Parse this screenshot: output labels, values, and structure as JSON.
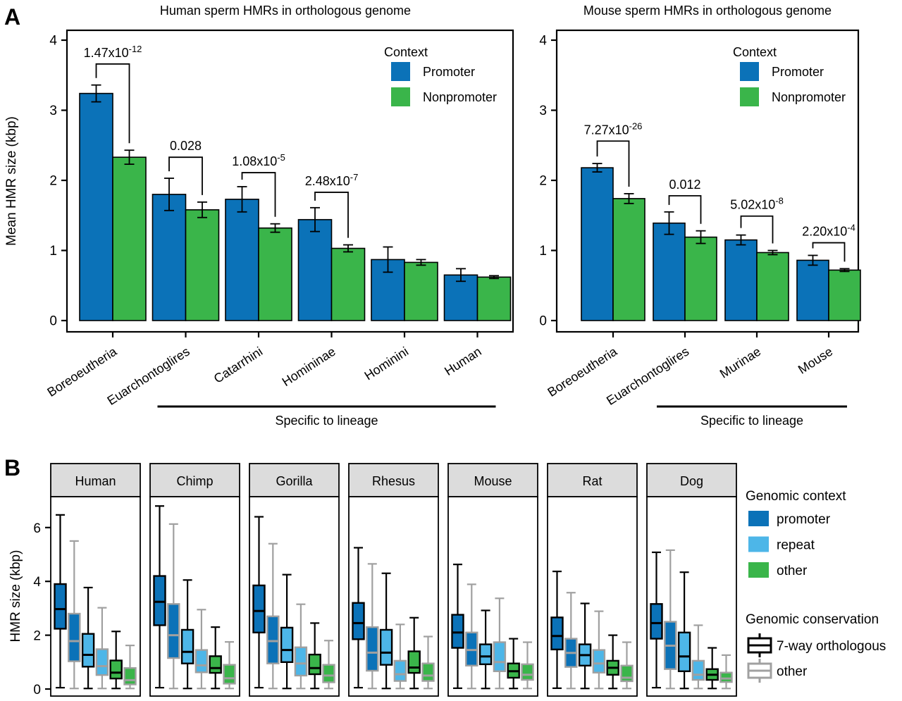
{
  "figure": {
    "panel_a_label": "A",
    "panel_b_label": "B"
  },
  "colors": {
    "promoter_blue": "#0b72b8",
    "nonpromoter_green": "#3ab54a",
    "repeat_lightblue": "#4db6e8",
    "conservation_other_gray": "#a0a0a0",
    "axis_black": "#000000",
    "strip_fill": "#dcdcdc"
  },
  "chart_data": [
    {
      "type": "bar",
      "panel": "A",
      "position": "left",
      "title": "Human sperm HMRs in orthologous genome",
      "ylabel": "Mean HMR size (kbp)",
      "ylim": [
        0,
        4
      ],
      "yticks": [
        0,
        1,
        2,
        3,
        4
      ],
      "categories": [
        "Boreoeutheria",
        "Euarchontoglires",
        "Catarrhini",
        "Homininae",
        "Hominini",
        "Human"
      ],
      "series": [
        {
          "name": "Promoter",
          "color_key": "promoter_blue",
          "values": [
            3.24,
            1.8,
            1.73,
            1.44,
            0.87,
            0.65
          ],
          "errors": [
            0.12,
            0.23,
            0.18,
            0.17,
            0.18,
            0.09
          ]
        },
        {
          "name": "Nonpromoter",
          "color_key": "nonpromoter_green",
          "values": [
            2.33,
            1.58,
            1.32,
            1.03,
            0.83,
            0.62
          ],
          "errors": [
            0.1,
            0.11,
            0.06,
            0.05,
            0.04,
            0.02
          ]
        }
      ],
      "significance": [
        {
          "group": 0,
          "label": "1.47x10",
          "exponent": "-12",
          "bracket_y": 3.66
        },
        {
          "group": 1,
          "label": "0.028",
          "exponent": "",
          "bracket_y": 2.33
        },
        {
          "group": 2,
          "label": "1.08x10",
          "exponent": "-5",
          "bracket_y": 2.11
        },
        {
          "group": 3,
          "label": "2.48x10",
          "exponent": "-7",
          "bracket_y": 1.83
        }
      ],
      "legend": {
        "title": "Context",
        "items": [
          "Promoter",
          "Nonpromoter"
        ]
      },
      "annotation": {
        "text": "Specific to lineage",
        "from_group": 1,
        "to_group": 5
      }
    },
    {
      "type": "bar",
      "panel": "A",
      "position": "right",
      "title": "Mouse sperm HMRs in orthologous genome",
      "ylabel": "",
      "ylim": [
        0,
        4
      ],
      "yticks": [
        0,
        1,
        2,
        3,
        4
      ],
      "categories": [
        "Boreoeutheria",
        "Euarchontoglires",
        "Murinae",
        "Mouse"
      ],
      "series": [
        {
          "name": "Promoter",
          "color_key": "promoter_blue",
          "values": [
            2.18,
            1.39,
            1.15,
            0.86
          ],
          "errors": [
            0.06,
            0.16,
            0.07,
            0.07
          ]
        },
        {
          "name": "Nonpromoter",
          "color_key": "nonpromoter_green",
          "values": [
            1.74,
            1.19,
            0.97,
            0.72
          ],
          "errors": [
            0.07,
            0.09,
            0.03,
            0.02
          ]
        }
      ],
      "significance": [
        {
          "group": 0,
          "label": "7.27x10",
          "exponent": "-26",
          "bracket_y": 2.56
        },
        {
          "group": 1,
          "label": "0.012",
          "exponent": "",
          "bracket_y": 1.78
        },
        {
          "group": 2,
          "label": "5.02x10",
          "exponent": "-8",
          "bracket_y": 1.49
        },
        {
          "group": 3,
          "label": "2.20x10",
          "exponent": "-4",
          "bracket_y": 1.11
        }
      ],
      "legend": {
        "title": "Context",
        "items": [
          "Promoter",
          "Nonpromoter"
        ]
      },
      "annotation": {
        "text": "Specific to lineage",
        "from_group": 1,
        "to_group": 3
      }
    },
    {
      "type": "box",
      "panel": "B",
      "ylabel": "HMR size (kbp)",
      "ylim": [
        0,
        7.3
      ],
      "yticks": [
        0,
        2,
        4,
        6
      ],
      "context_legend": {
        "title": "Genomic context",
        "items": [
          {
            "label": "promoter",
            "color_key": "promoter_blue"
          },
          {
            "label": "repeat",
            "color_key": "repeat_lightblue"
          },
          {
            "label": "other",
            "color_key": "nonpromoter_green"
          }
        ]
      },
      "conservation_legend": {
        "title": "Genomic conservation",
        "items": [
          {
            "label": "7-way orthologous",
            "color_key": "axis_black"
          },
          {
            "label": "other",
            "color_key": "conservation_other_gray"
          }
        ]
      },
      "facets": [
        {
          "name": "Human",
          "boxes": [
            {
              "context": "promoter",
              "conservation": "7-way orthologous",
              "whisker_low": 0.05,
              "q1": 2.24,
              "median": 2.97,
              "q3": 3.9,
              "whisker_high": 6.47
            },
            {
              "context": "promoter",
              "conservation": "other",
              "whisker_low": 0.02,
              "q1": 1.03,
              "median": 1.78,
              "q3": 2.8,
              "whisker_high": 5.5
            },
            {
              "context": "repeat",
              "conservation": "7-way orthologous",
              "whisker_low": 0.02,
              "q1": 0.83,
              "median": 1.27,
              "q3": 2.05,
              "whisker_high": 3.77
            },
            {
              "context": "repeat",
              "conservation": "other",
              "whisker_low": 0.02,
              "q1": 0.52,
              "median": 0.85,
              "q3": 1.48,
              "whisker_high": 3.02
            },
            {
              "context": "other",
              "conservation": "7-way orthologous",
              "whisker_low": 0.02,
              "q1": 0.39,
              "median": 0.61,
              "q3": 1.06,
              "whisker_high": 2.14
            },
            {
              "context": "other",
              "conservation": "other",
              "whisker_low": 0.02,
              "q1": 0.17,
              "median": 0.33,
              "q3": 0.78,
              "whisker_high": 1.62
            }
          ]
        },
        {
          "name": "Chimp",
          "boxes": [
            {
              "context": "promoter",
              "conservation": "7-way orthologous",
              "whisker_low": 0.05,
              "q1": 2.37,
              "median": 3.24,
              "q3": 4.2,
              "whisker_high": 6.8
            },
            {
              "context": "promoter",
              "conservation": "other",
              "whisker_low": 0.02,
              "q1": 1.15,
              "median": 2.0,
              "q3": 3.16,
              "whisker_high": 6.13
            },
            {
              "context": "repeat",
              "conservation": "7-way orthologous",
              "whisker_low": 0.02,
              "q1": 0.95,
              "median": 1.38,
              "q3": 2.2,
              "whisker_high": 4.05
            },
            {
              "context": "repeat",
              "conservation": "other",
              "whisker_low": 0.02,
              "q1": 0.62,
              "median": 0.88,
              "q3": 1.45,
              "whisker_high": 2.95
            },
            {
              "context": "other",
              "conservation": "7-way orthologous",
              "whisker_low": 0.02,
              "q1": 0.6,
              "median": 0.78,
              "q3": 1.22,
              "whisker_high": 2.3
            },
            {
              "context": "other",
              "conservation": "other",
              "whisker_low": 0.02,
              "q1": 0.2,
              "median": 0.4,
              "q3": 0.9,
              "whisker_high": 1.75
            }
          ]
        },
        {
          "name": "Gorilla",
          "boxes": [
            {
              "context": "promoter",
              "conservation": "7-way orthologous",
              "whisker_low": 0.05,
              "q1": 2.1,
              "median": 2.9,
              "q3": 3.85,
              "whisker_high": 6.4
            },
            {
              "context": "promoter",
              "conservation": "other",
              "whisker_low": 0.02,
              "q1": 0.95,
              "median": 1.78,
              "q3": 2.7,
              "whisker_high": 5.4
            },
            {
              "context": "repeat",
              "conservation": "7-way orthologous",
              "whisker_low": 0.02,
              "q1": 1.0,
              "median": 1.45,
              "q3": 2.28,
              "whisker_high": 4.25
            },
            {
              "context": "repeat",
              "conservation": "other",
              "whisker_low": 0.02,
              "q1": 0.5,
              "median": 0.95,
              "q3": 1.55,
              "whisker_high": 3.15
            },
            {
              "context": "other",
              "conservation": "7-way orthologous",
              "whisker_low": 0.02,
              "q1": 0.55,
              "median": 0.78,
              "q3": 1.28,
              "whisker_high": 2.45
            },
            {
              "context": "other",
              "conservation": "other",
              "whisker_low": 0.02,
              "q1": 0.25,
              "median": 0.5,
              "q3": 0.9,
              "whisker_high": 1.8
            }
          ]
        },
        {
          "name": "Rhesus",
          "boxes": [
            {
              "context": "promoter",
              "conservation": "7-way orthologous",
              "whisker_low": 0.05,
              "q1": 1.85,
              "median": 2.45,
              "q3": 3.2,
              "whisker_high": 5.25
            },
            {
              "context": "promoter",
              "conservation": "other",
              "whisker_low": 0.02,
              "q1": 0.68,
              "median": 1.35,
              "q3": 2.3,
              "whisker_high": 4.65
            },
            {
              "context": "repeat",
              "conservation": "7-way orthologous",
              "whisker_low": 0.02,
              "q1": 0.9,
              "median": 1.35,
              "q3": 2.2,
              "whisker_high": 4.3
            },
            {
              "context": "repeat",
              "conservation": "other",
              "whisker_low": 0.02,
              "q1": 0.3,
              "median": 0.55,
              "q3": 1.05,
              "whisker_high": 2.4
            },
            {
              "context": "other",
              "conservation": "7-way orthologous",
              "whisker_low": 0.02,
              "q1": 0.6,
              "median": 0.8,
              "q3": 1.4,
              "whisker_high": 2.65
            },
            {
              "context": "other",
              "conservation": "other",
              "whisker_low": 0.02,
              "q1": 0.3,
              "median": 0.5,
              "q3": 0.95,
              "whisker_high": 1.95
            }
          ]
        },
        {
          "name": "Mouse",
          "boxes": [
            {
              "context": "promoter",
              "conservation": "7-way orthologous",
              "whisker_low": 0.03,
              "q1": 1.53,
              "median": 2.1,
              "q3": 2.76,
              "whisker_high": 4.63
            },
            {
              "context": "promoter",
              "conservation": "other",
              "whisker_low": 0.02,
              "q1": 0.87,
              "median": 1.45,
              "q3": 2.1,
              "whisker_high": 3.89
            },
            {
              "context": "repeat",
              "conservation": "7-way orthologous",
              "whisker_low": 0.02,
              "q1": 0.92,
              "median": 1.21,
              "q3": 1.66,
              "whisker_high": 2.92
            },
            {
              "context": "repeat",
              "conservation": "other",
              "whisker_low": 0.02,
              "q1": 0.66,
              "median": 1.0,
              "q3": 1.74,
              "whisker_high": 3.37
            },
            {
              "context": "other",
              "conservation": "7-way orthologous",
              "whisker_low": 0.02,
              "q1": 0.42,
              "median": 0.66,
              "q3": 0.95,
              "whisker_high": 1.87
            },
            {
              "context": "other",
              "conservation": "other",
              "whisker_low": 0.02,
              "q1": 0.34,
              "median": 0.53,
              "q3": 0.92,
              "whisker_high": 1.74
            }
          ]
        },
        {
          "name": "Rat",
          "boxes": [
            {
              "context": "promoter",
              "conservation": "7-way orthologous",
              "whisker_low": 0.03,
              "q1": 1.47,
              "median": 1.97,
              "q3": 2.66,
              "whisker_high": 4.37
            },
            {
              "context": "promoter",
              "conservation": "other",
              "whisker_low": 0.02,
              "q1": 0.82,
              "median": 1.34,
              "q3": 1.87,
              "whisker_high": 3.58
            },
            {
              "context": "repeat",
              "conservation": "7-way orthologous",
              "whisker_low": 0.02,
              "q1": 0.87,
              "median": 1.26,
              "q3": 1.66,
              "whisker_high": 3.18
            },
            {
              "context": "repeat",
              "conservation": "other",
              "whisker_low": 0.02,
              "q1": 0.61,
              "median": 0.95,
              "q3": 1.45,
              "whisker_high": 2.89
            },
            {
              "context": "other",
              "conservation": "7-way orthologous",
              "whisker_low": 0.02,
              "q1": 0.53,
              "median": 0.79,
              "q3": 1.05,
              "whisker_high": 2.0
            },
            {
              "context": "other",
              "conservation": "other",
              "whisker_low": 0.02,
              "q1": 0.29,
              "median": 0.42,
              "q3": 0.87,
              "whisker_high": 1.74
            }
          ]
        },
        {
          "name": "Dog",
          "boxes": [
            {
              "context": "promoter",
              "conservation": "7-way orthologous",
              "whisker_low": 0.05,
              "q1": 1.87,
              "median": 2.45,
              "q3": 3.16,
              "whisker_high": 5.08
            },
            {
              "context": "promoter",
              "conservation": "other",
              "whisker_low": 0.02,
              "q1": 0.74,
              "median": 1.61,
              "q3": 2.5,
              "whisker_high": 5.16
            },
            {
              "context": "repeat",
              "conservation": "7-way orthologous",
              "whisker_low": 0.02,
              "q1": 0.66,
              "median": 1.21,
              "q3": 2.1,
              "whisker_high": 4.34
            },
            {
              "context": "repeat",
              "conservation": "other",
              "whisker_low": 0.02,
              "q1": 0.34,
              "median": 0.53,
              "q3": 1.05,
              "whisker_high": 2.37
            },
            {
              "context": "other",
              "conservation": "7-way orthologous",
              "whisker_low": 0.02,
              "q1": 0.34,
              "median": 0.53,
              "q3": 0.74,
              "whisker_high": 1.53
            },
            {
              "context": "other",
              "conservation": "other",
              "whisker_low": 0.02,
              "q1": 0.26,
              "median": 0.39,
              "q3": 0.61,
              "whisker_high": 1.26
            }
          ]
        }
      ]
    }
  ]
}
